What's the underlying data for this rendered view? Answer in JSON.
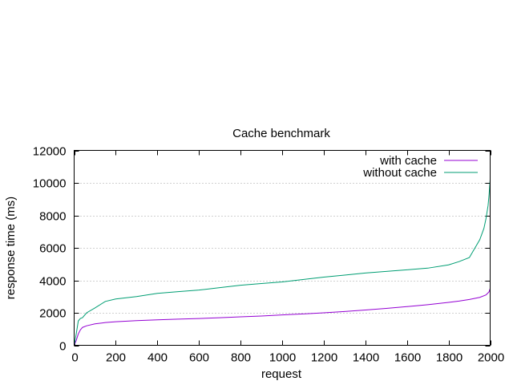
{
  "chart_data": {
    "type": "line",
    "title": "Cache benchmark",
    "xlabel": "request",
    "ylabel": "response time (ms)",
    "xlim": [
      0,
      2000
    ],
    "ylim": [
      0,
      12000
    ],
    "xticks": [
      0,
      200,
      400,
      600,
      800,
      1000,
      1200,
      1400,
      1600,
      1800,
      2000
    ],
    "yticks": [
      0,
      2000,
      4000,
      6000,
      8000,
      10000,
      12000
    ],
    "grid": "horizontal, dotted",
    "legend_position": "top-right",
    "series": [
      {
        "name": "with cache",
        "color": "#9400d3",
        "x": [
          0,
          10,
          20,
          30,
          40,
          60,
          100,
          150,
          200,
          300,
          400,
          500,
          600,
          700,
          800,
          900,
          1000,
          1100,
          1200,
          1300,
          1400,
          1500,
          1600,
          1700,
          1800,
          1850,
          1900,
          1950,
          1980,
          1995,
          2000
        ],
        "y": [
          0,
          300,
          700,
          950,
          1100,
          1200,
          1320,
          1400,
          1450,
          1520,
          1570,
          1610,
          1650,
          1700,
          1750,
          1800,
          1870,
          1930,
          2000,
          2080,
          2170,
          2270,
          2380,
          2500,
          2640,
          2720,
          2820,
          2950,
          3100,
          3300,
          3500
        ]
      },
      {
        "name": "without cache",
        "color": "#009e73",
        "x": [
          0,
          10,
          20,
          30,
          40,
          60,
          100,
          150,
          200,
          300,
          400,
          500,
          600,
          700,
          800,
          900,
          1000,
          1100,
          1200,
          1300,
          1400,
          1500,
          1600,
          1700,
          1800,
          1850,
          1900,
          1950,
          1970,
          1980,
          1990,
          1995,
          2000
        ],
        "y": [
          0,
          700,
          1500,
          1650,
          1700,
          2000,
          2300,
          2700,
          2850,
          3000,
          3200,
          3300,
          3400,
          3550,
          3700,
          3800,
          3900,
          4050,
          4200,
          4320,
          4450,
          4550,
          4650,
          4750,
          4950,
          5150,
          5400,
          6500,
          7200,
          7800,
          8600,
          9300,
          10200
        ]
      }
    ]
  }
}
